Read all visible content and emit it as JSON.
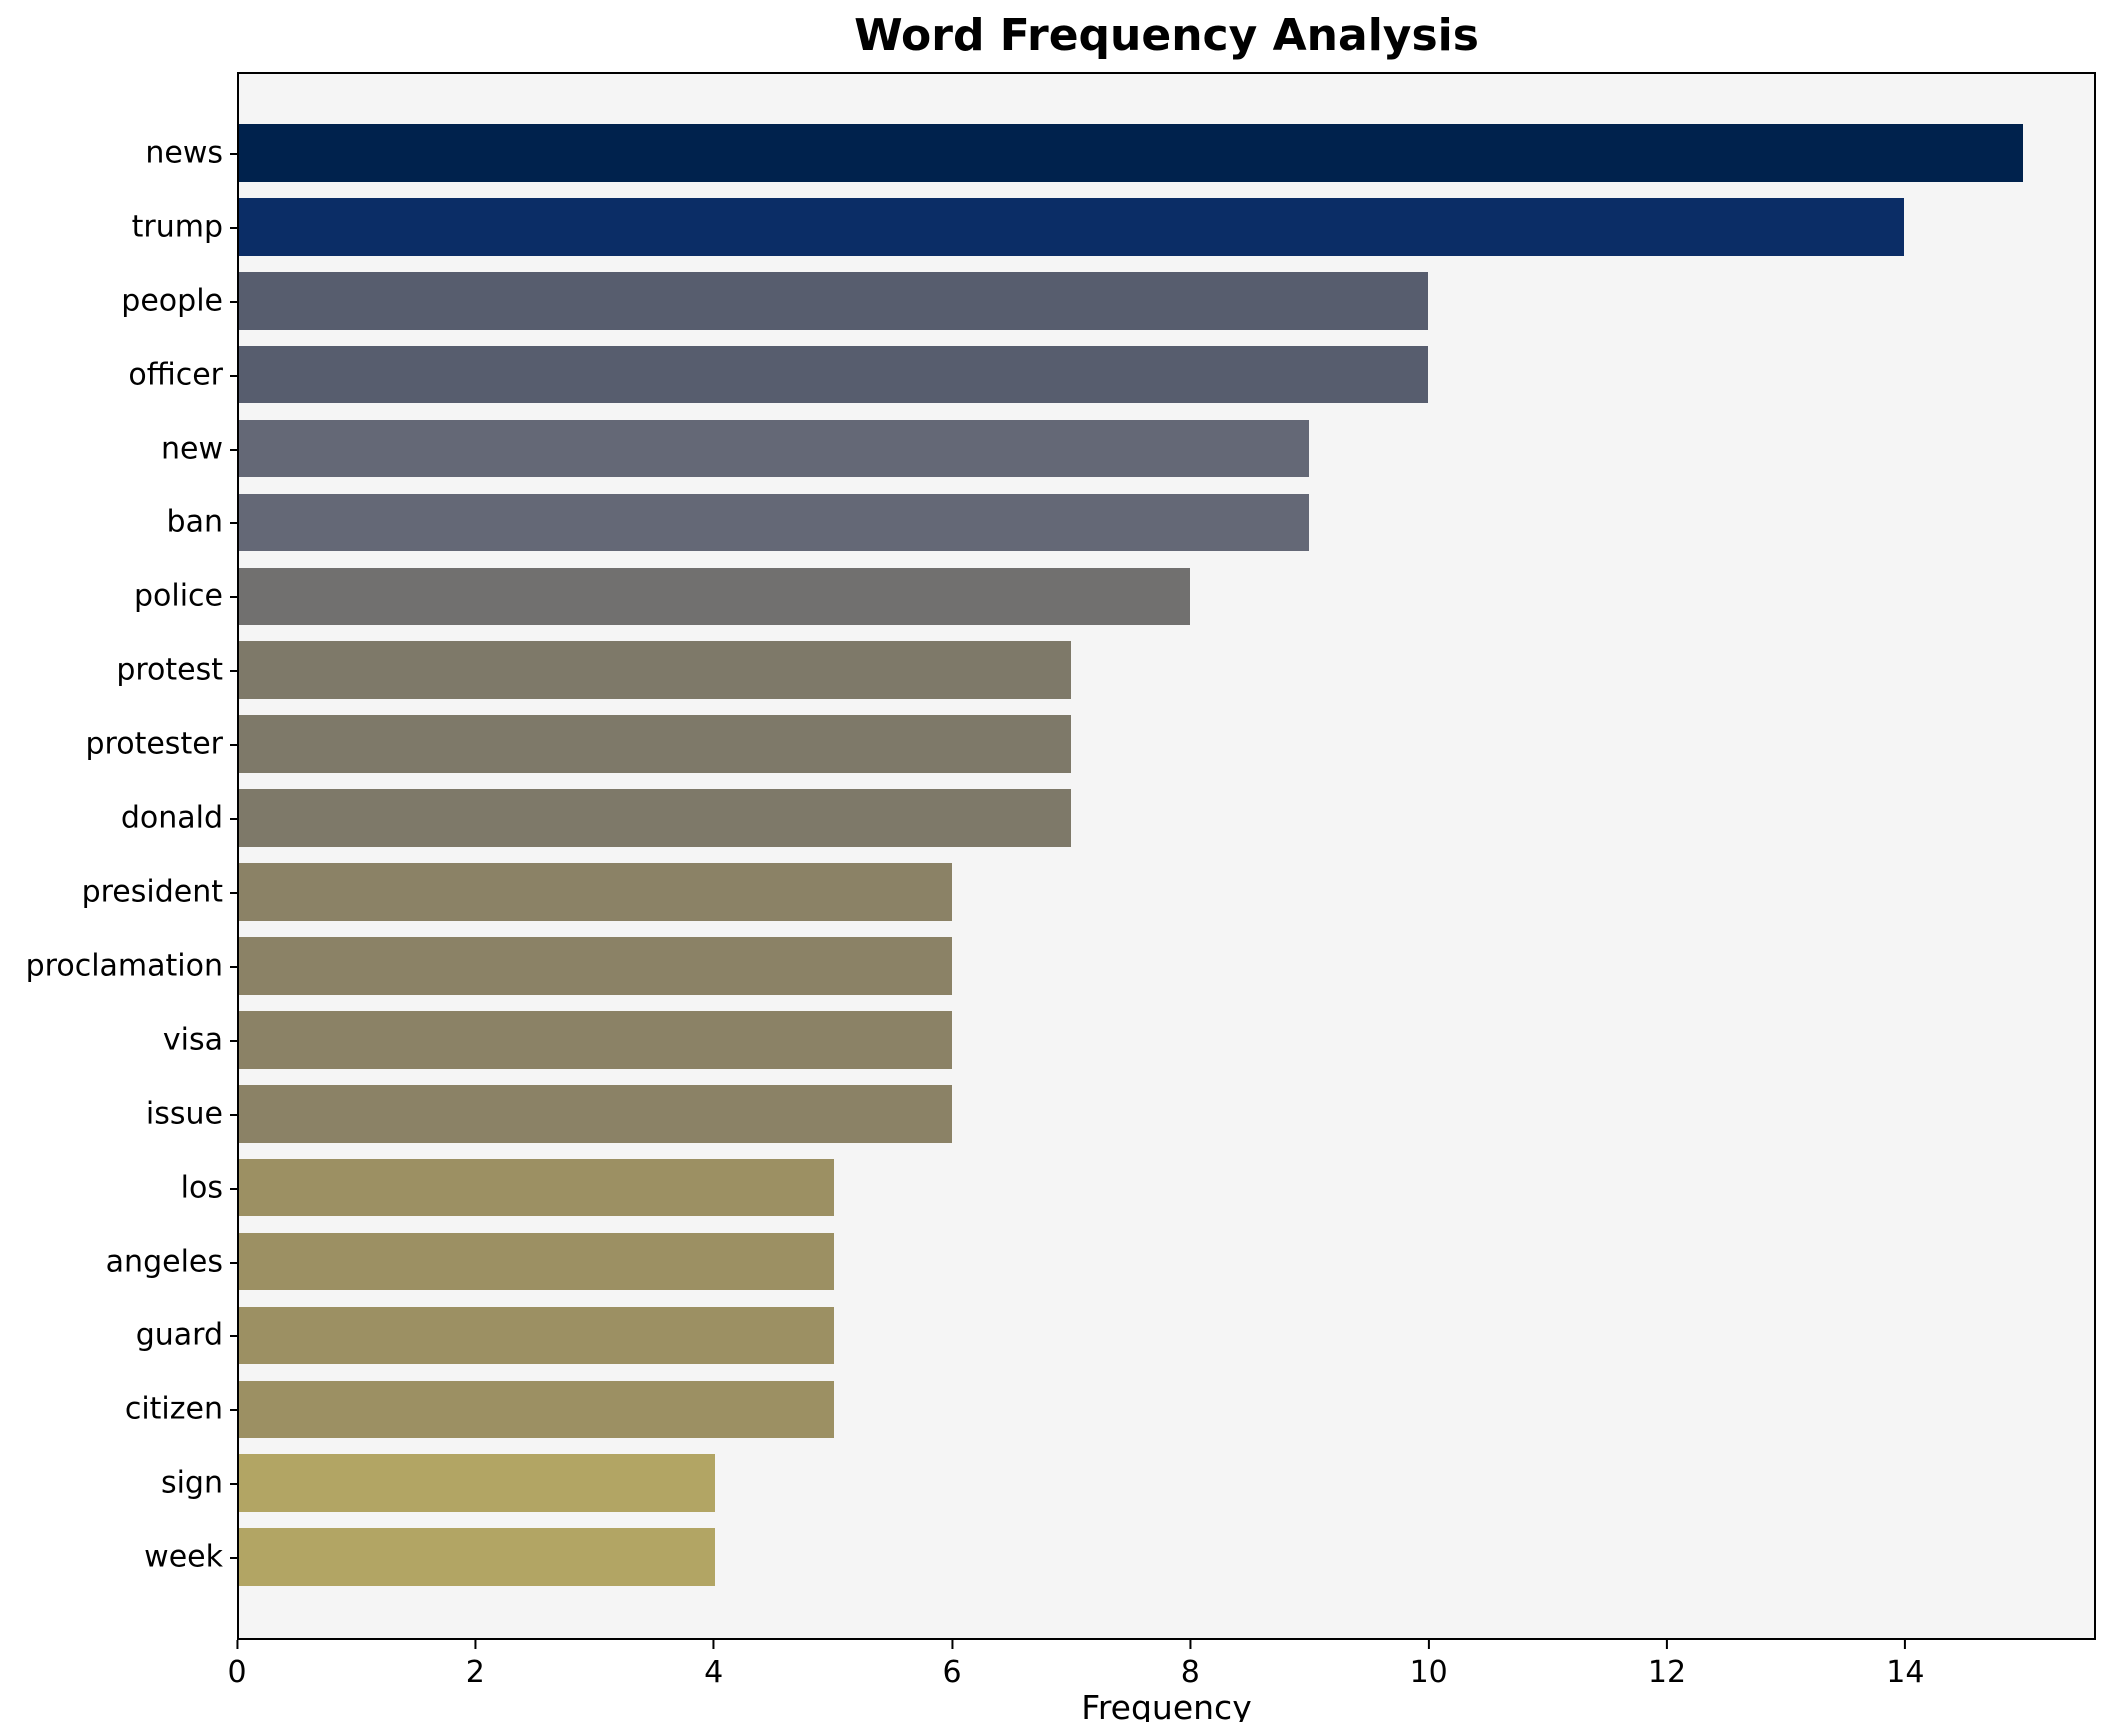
{
  "chart_data": {
    "type": "bar",
    "orientation": "horizontal",
    "title": "Word Frequency Analysis",
    "xlabel": "Frequency",
    "ylabel": "",
    "categories": [
      "news",
      "trump",
      "people",
      "officer",
      "new",
      "ban",
      "police",
      "protest",
      "protester",
      "donald",
      "president",
      "proclamation",
      "visa",
      "issue",
      "los",
      "angeles",
      "guard",
      "citizen",
      "sign",
      "week"
    ],
    "values": [
      15,
      14,
      10,
      10,
      9,
      9,
      8,
      7,
      7,
      7,
      6,
      6,
      6,
      6,
      5,
      5,
      5,
      5,
      4,
      4
    ],
    "colors": [
      "#00224d",
      "#0b2d66",
      "#575d6e",
      "#575d6e",
      "#646876",
      "#646876",
      "#71706f",
      "#7e7969",
      "#7e7969",
      "#7e7969",
      "#8b8266",
      "#8b8266",
      "#8b8266",
      "#8b8266",
      "#9c9063",
      "#9c9063",
      "#9c9063",
      "#9c9063",
      "#b2a564",
      "#b2a564"
    ],
    "xlim": [
      0,
      15.6
    ],
    "xticks": [
      0,
      2,
      4,
      6,
      8,
      10,
      12,
      14
    ],
    "grid": false,
    "legend_position": "none",
    "plot_background": "#f5f5f5",
    "spine_color": "#000000"
  }
}
